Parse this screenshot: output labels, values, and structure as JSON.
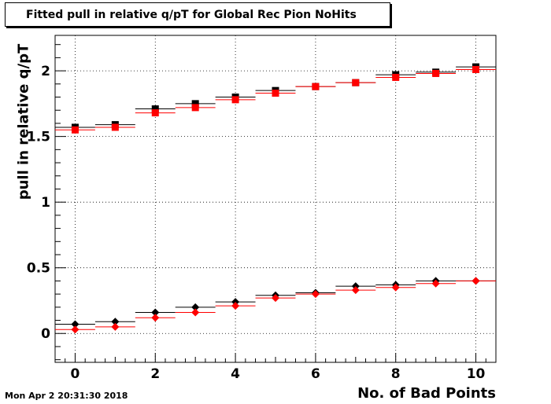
{
  "stamp": "Mon Apr  2 20:31:30 2018",
  "chart_data": {
    "type": "scatter",
    "title": "Fitted pull in relative q/pT for Global Rec Pion NoHits",
    "xlabel": "No. of Bad Points",
    "ylabel": "pull in relative q/pT",
    "xlim": [
      -0.5,
      10.5
    ],
    "ylim": [
      -0.22,
      2.27
    ],
    "xticks": [
      0,
      2,
      4,
      6,
      8,
      10
    ],
    "yticks": [
      0,
      0.5,
      1,
      1.5,
      2
    ],
    "grid": true,
    "x": [
      0,
      1,
      2,
      3,
      4,
      5,
      6,
      7,
      8,
      9,
      10
    ],
    "series": [
      {
        "marker": "square",
        "color": "#000000",
        "values": [
          1.57,
          1.59,
          1.71,
          1.75,
          1.8,
          1.85,
          1.88,
          1.91,
          1.97,
          1.99,
          2.03
        ]
      },
      {
        "marker": "square",
        "color": "#ff0000",
        "values": [
          1.55,
          1.57,
          1.68,
          1.72,
          1.78,
          1.83,
          1.88,
          1.91,
          1.95,
          1.98,
          2.01
        ]
      },
      {
        "marker": "diamond",
        "color": "#000000",
        "values": [
          0.07,
          0.09,
          0.16,
          0.2,
          0.24,
          0.29,
          0.31,
          0.36,
          0.37,
          0.4,
          0.4
        ]
      },
      {
        "marker": "diamond",
        "color": "#ff0000",
        "values": [
          0.03,
          0.05,
          0.12,
          0.16,
          0.21,
          0.27,
          0.3,
          0.33,
          0.35,
          0.38,
          0.4
        ]
      }
    ]
  }
}
